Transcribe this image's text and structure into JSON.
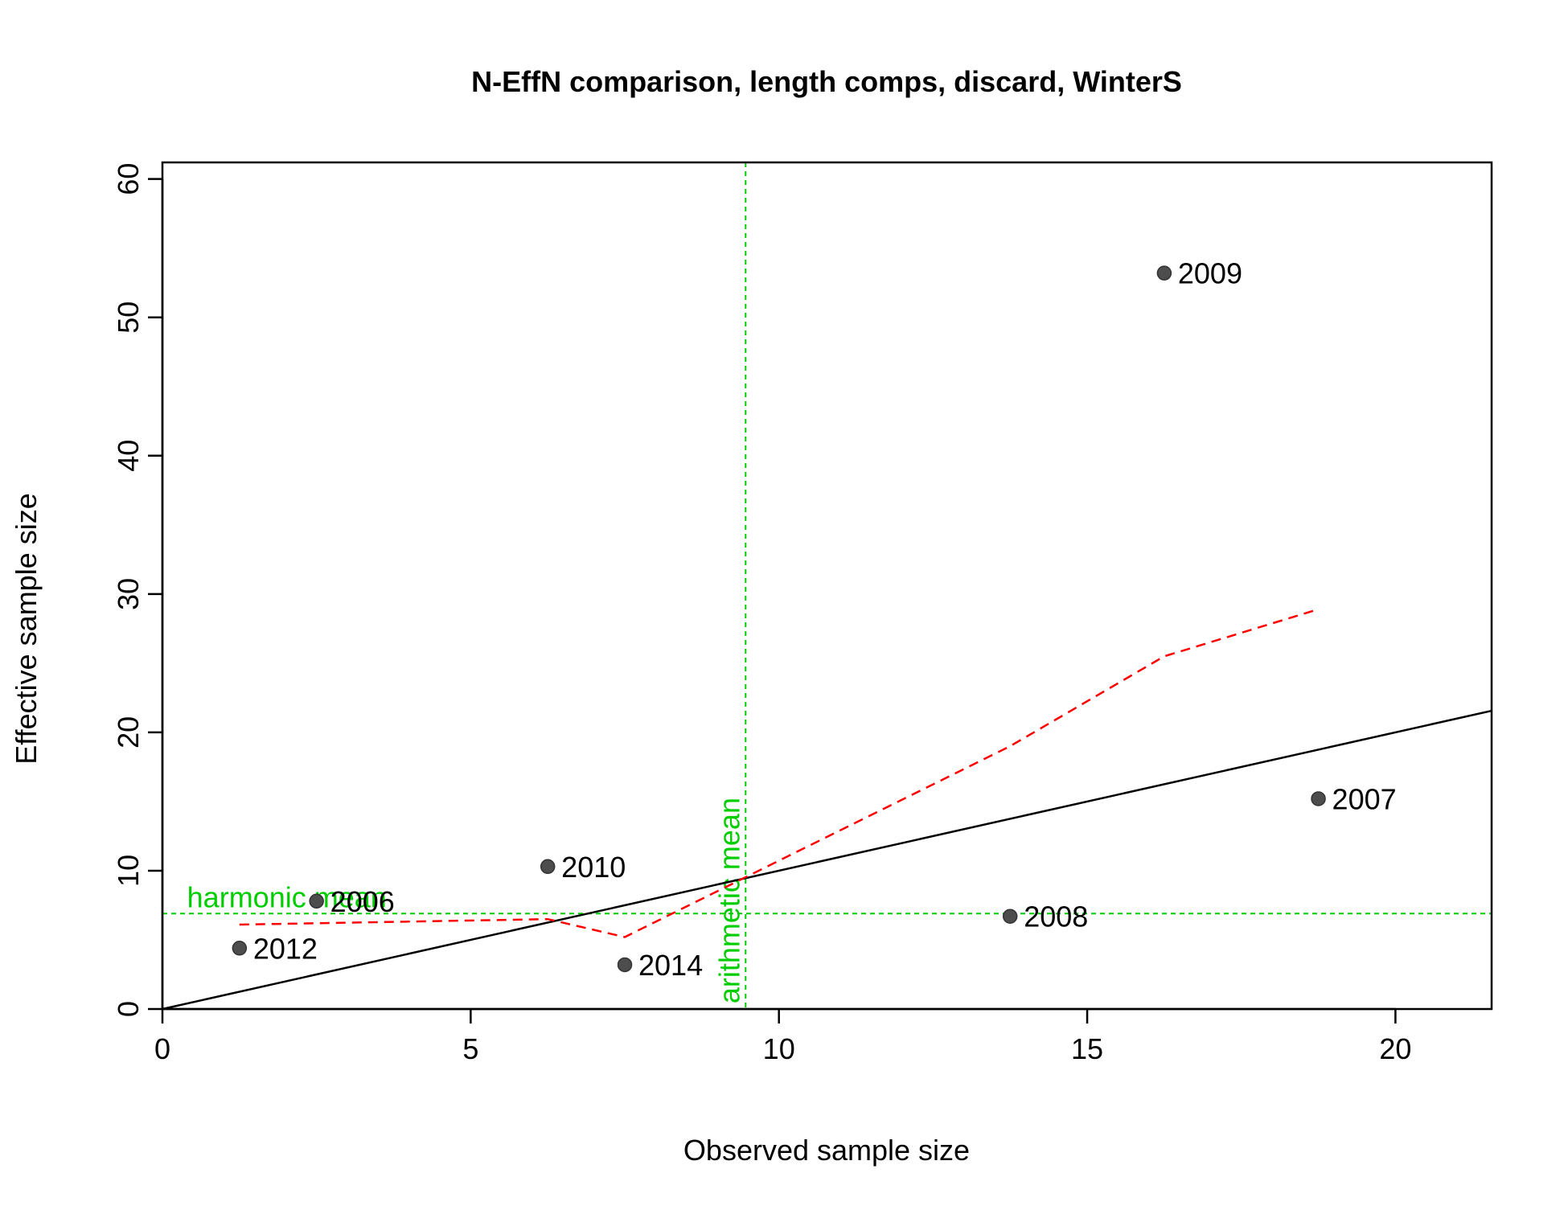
{
  "chart_data": {
    "type": "scatter",
    "title": "N-EffN comparison, length comps, discard, WinterS",
    "xlabel": "Observed sample size",
    "ylabel": "Effective sample size",
    "xlim": [
      0,
      21.56
    ],
    "ylim": [
      0,
      61.2
    ],
    "xticks": [
      0,
      5,
      10,
      15,
      20
    ],
    "yticks": [
      0,
      10,
      20,
      30,
      40,
      50,
      60
    ],
    "points": [
      {
        "label": "2006",
        "x": 2.5,
        "y": 7.8
      },
      {
        "label": "2007",
        "x": 18.75,
        "y": 15.2
      },
      {
        "label": "2008",
        "x": 13.75,
        "y": 6.7
      },
      {
        "label": "2009",
        "x": 16.25,
        "y": 53.2
      },
      {
        "label": "2010",
        "x": 6.25,
        "y": 10.3
      },
      {
        "label": "2012",
        "x": 1.25,
        "y": 4.4
      },
      {
        "label": "2014",
        "x": 7.5,
        "y": 3.2
      }
    ],
    "one_to_one_line": true,
    "smoother": {
      "color": "#ff0000",
      "style": "dashed",
      "points": [
        [
          1.25,
          6.1
        ],
        [
          2.5,
          6.2
        ],
        [
          6.25,
          6.5
        ],
        [
          7.5,
          5.2
        ],
        [
          9.4,
          9.4
        ],
        [
          13.75,
          19.0
        ],
        [
          16.25,
          25.5
        ],
        [
          18.75,
          28.9
        ]
      ]
    },
    "harmonic_mean": {
      "y": 6.9,
      "label": "harmonic mean",
      "color": "#00cd00"
    },
    "arithmetic_mean": {
      "x": 9.46,
      "label": "arithmetic mean",
      "color": "#00cd00"
    },
    "point_color": "#4d4d4d",
    "grid": false
  }
}
